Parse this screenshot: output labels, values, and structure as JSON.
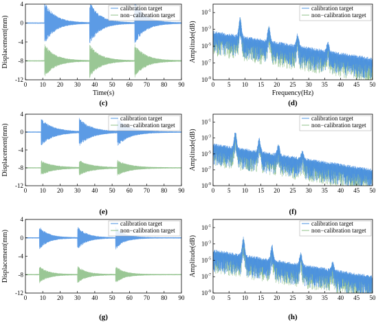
{
  "colors": {
    "calibration": "#4a90e2",
    "non_calibration": "#8fc18a",
    "axis": "#000000"
  },
  "chart_data": [
    {
      "id": "c",
      "type": "line",
      "panel_label": "(c)",
      "xlabel": "Time(s)",
      "ylabel": "Displacement(mm)",
      "xlim": [
        0,
        90
      ],
      "ylim": [
        -12,
        4
      ],
      "xticks": [
        0,
        10,
        20,
        30,
        40,
        50,
        60,
        70,
        80,
        90
      ],
      "yticks": [
        4,
        0,
        -4,
        -8,
        -12
      ],
      "legend": [
        "calibration target",
        "non−calibration target"
      ],
      "legend_position": "top-right",
      "impacts": [
        11,
        37,
        63
      ],
      "series": [
        {
          "name": "calibration target",
          "baseline": 0,
          "peak": 4.5,
          "decay": 6
        },
        {
          "name": "non−calibration target",
          "baseline": -8,
          "peak": 3.5,
          "decay": 6
        }
      ]
    },
    {
      "id": "d",
      "type": "line",
      "panel_label": "(d)",
      "xlabel": "Frequency(Hz)",
      "ylabel": "Amplitude(dB)",
      "xlim": [
        0,
        50
      ],
      "ylog": true,
      "ylim_exp": [
        -9,
        0
      ],
      "xticks": [
        0,
        5,
        10,
        15,
        20,
        25,
        30,
        35,
        40,
        45,
        50
      ],
      "yticks_exp": [
        -1,
        -3,
        -5,
        -7,
        -9
      ],
      "legend": [
        "calibration target",
        "non−calibration target"
      ],
      "legend_position": "top-right",
      "peaks": [
        8.5,
        17.5,
        26.5,
        36
      ],
      "series": [
        {
          "name": "calibration target",
          "envelope_exp": -3.5,
          "peak_exp": -1.3
        },
        {
          "name": "non−calibration target",
          "envelope_exp": -3.8,
          "peak_exp": -1.4
        }
      ]
    },
    {
      "id": "e",
      "type": "line",
      "panel_label": "(e)",
      "xlabel": "",
      "ylabel": "Displacement(mm)",
      "xlim": [
        0,
        90
      ],
      "ylim": [
        -12,
        4
      ],
      "xticks": [
        0,
        10,
        20,
        30,
        40,
        50,
        60,
        70,
        80,
        90
      ],
      "yticks": [
        4,
        0,
        -4,
        -8,
        -12
      ],
      "legend": [
        "calibration target",
        "non−calibration target"
      ],
      "legend_position": "top-right",
      "impacts": [
        9,
        31,
        53
      ],
      "series": [
        {
          "name": "calibration target",
          "baseline": 0,
          "peak": 3,
          "decay": 7
        },
        {
          "name": "non−calibration target",
          "baseline": -8,
          "peak": 1.6,
          "decay": 7
        }
      ]
    },
    {
      "id": "f",
      "type": "line",
      "panel_label": "(f)",
      "xlabel": "",
      "ylabel": "Amplitude(dB)",
      "xlim": [
        0,
        50
      ],
      "ylog": true,
      "ylim_exp": [
        -9,
        0
      ],
      "xticks": [
        0,
        5,
        10,
        15,
        20,
        25,
        30,
        35,
        40,
        45,
        50
      ],
      "yticks_exp": [
        -1,
        -3,
        -5,
        -7,
        -9
      ],
      "legend": [
        "calibration target",
        "non−calibration target"
      ],
      "legend_position": "top-right",
      "peaks": [
        7,
        14.5,
        20.5,
        28
      ],
      "series": [
        {
          "name": "calibration target",
          "envelope_exp": -4,
          "peak_exp": -2
        },
        {
          "name": "non−calibration target",
          "envelope_exp": -4.2,
          "peak_exp": -2.1
        }
      ]
    },
    {
      "id": "g",
      "type": "line",
      "panel_label": "(g)",
      "xlabel": "",
      "ylabel": "Displacement(mm)",
      "xlim": [
        0,
        90
      ],
      "ylim": [
        -12,
        4
      ],
      "xticks": [
        0,
        10,
        20,
        30,
        40,
        50,
        60,
        70,
        80,
        90
      ],
      "yticks": [
        4,
        0,
        -4,
        -8,
        -12
      ],
      "legend": [
        "calibration target",
        "non−calibration target"
      ],
      "legend_position": "top-right",
      "impacts": [
        8,
        30,
        52
      ],
      "series": [
        {
          "name": "calibration target",
          "baseline": 0,
          "peak": 2.5,
          "decay": 5
        },
        {
          "name": "non−calibration target",
          "baseline": -8,
          "peak": 1.8,
          "decay": 5
        }
      ]
    },
    {
      "id": "h",
      "type": "line",
      "panel_label": "(h)",
      "xlabel": "",
      "ylabel": "Amplitude(dB)",
      "xlim": [
        0,
        50
      ],
      "ylog": true,
      "ylim_exp": [
        -9,
        0
      ],
      "xticks": [
        0,
        5,
        10,
        15,
        20,
        25,
        30,
        35,
        40,
        45,
        50
      ],
      "yticks_exp": [
        -1,
        -3,
        -5,
        -7,
        -9
      ],
      "legend": [
        "calibration target",
        "non−calibration target"
      ],
      "legend_position": "top-right",
      "peaks": [
        9.5,
        18.5,
        27.5,
        37.5
      ],
      "series": [
        {
          "name": "calibration target",
          "envelope_exp": -4,
          "peak_exp": -1.8
        },
        {
          "name": "non−calibration target",
          "envelope_exp": -4.2,
          "peak_exp": -1.9
        }
      ]
    }
  ]
}
